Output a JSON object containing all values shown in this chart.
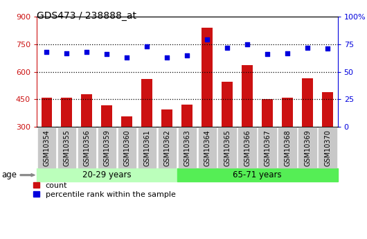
{
  "title": "GDS473 / 238888_at",
  "samples": [
    "GSM10354",
    "GSM10355",
    "GSM10356",
    "GSM10359",
    "GSM10360",
    "GSM10361",
    "GSM10362",
    "GSM10363",
    "GSM10364",
    "GSM10365",
    "GSM10366",
    "GSM10367",
    "GSM10368",
    "GSM10369",
    "GSM10370"
  ],
  "counts": [
    460,
    460,
    478,
    415,
    355,
    560,
    395,
    420,
    840,
    545,
    635,
    450,
    460,
    565,
    490
  ],
  "percentiles": [
    68,
    67,
    68,
    66,
    63,
    73,
    63,
    65,
    79,
    72,
    75,
    66,
    67,
    72,
    71
  ],
  "group1_label": "20-29 years",
  "group2_label": "65-71 years",
  "group1_count": 7,
  "group2_count": 8,
  "age_label": "age",
  "bar_color": "#cc1111",
  "dot_color": "#0000dd",
  "ylim_left": [
    300,
    900
  ],
  "ylim_right": [
    0,
    100
  ],
  "yticks_left": [
    300,
    450,
    600,
    750,
    900
  ],
  "yticks_right": [
    0,
    25,
    50,
    75,
    100
  ],
  "legend_count": "count",
  "legend_percentile": "percentile rank within the sample",
  "title_fontsize": 10,
  "tick_label_fontsize": 7,
  "bar_width": 0.55,
  "group1_bg": "#bbffbb",
  "group2_bg": "#55ee55",
  "tick_bg": "#c8c8c8"
}
